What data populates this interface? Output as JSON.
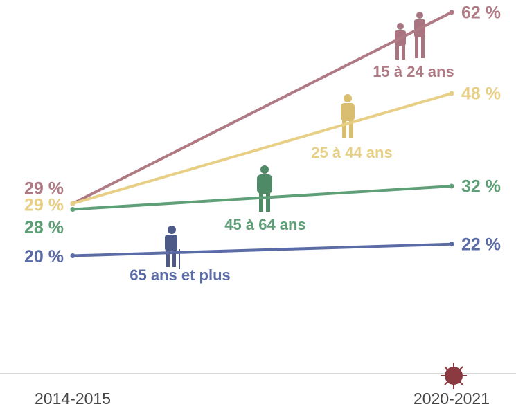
{
  "chart_data": {
    "type": "line",
    "categories": [
      "2014-2015",
      "2020-2021"
    ],
    "series": [
      {
        "name": "15 à 24 ans",
        "color": "#b07a85",
        "values": [
          29,
          62
        ],
        "value_labels": [
          "29 %",
          "62 %"
        ]
      },
      {
        "name": "25 à 44 ans",
        "color": "#e8cf86",
        "values": [
          29,
          48
        ],
        "value_labels": [
          "29 %",
          "48 %"
        ]
      },
      {
        "name": "45 à 64 ans",
        "color": "#5e9f78",
        "values": [
          28,
          32
        ],
        "value_labels": [
          "28 %",
          "32 %"
        ]
      },
      {
        "name": "65 ans et plus",
        "color": "#5a6ba5",
        "values": [
          20,
          22
        ],
        "value_labels": [
          "20 %",
          "22 %"
        ]
      }
    ],
    "ylim": [
      0,
      64
    ]
  }
}
